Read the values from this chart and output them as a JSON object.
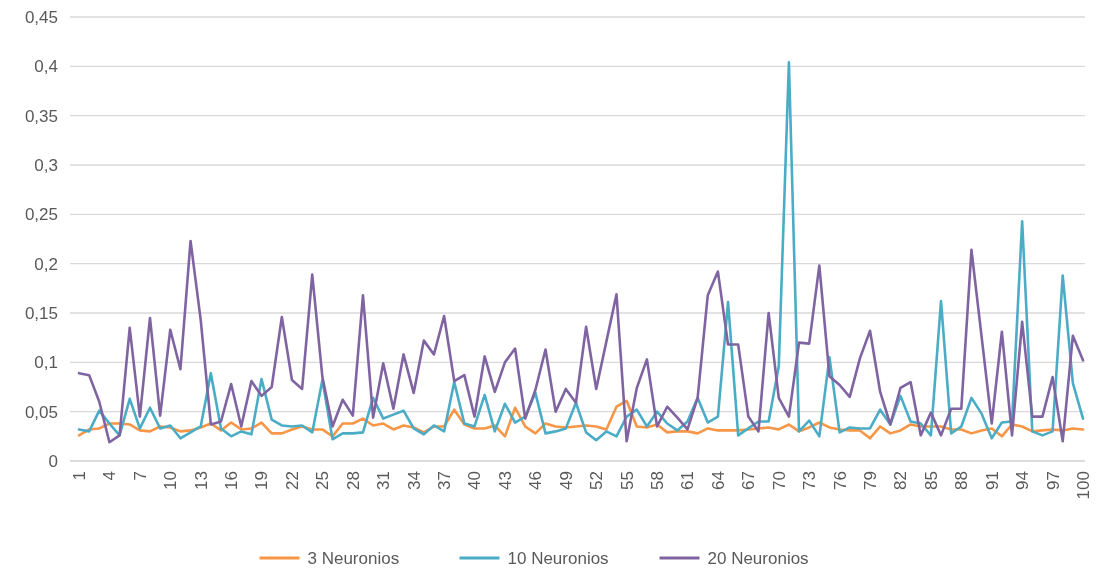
{
  "chart_data": {
    "type": "line",
    "categories": [
      "1",
      null,
      null,
      "4",
      null,
      null,
      "7",
      null,
      null,
      "10",
      null,
      null,
      "13",
      null,
      null,
      "16",
      null,
      null,
      "19",
      null,
      null,
      "22",
      null,
      null,
      "25",
      null,
      null,
      "28",
      null,
      null,
      "31",
      null,
      null,
      "34",
      null,
      null,
      "37",
      null,
      null,
      "40",
      null,
      null,
      "43",
      null,
      null,
      "46",
      null,
      null,
      "49",
      null,
      null,
      "52",
      null,
      null,
      "55",
      null,
      null,
      "58",
      null,
      null,
      "61",
      null,
      null,
      "64",
      null,
      null,
      "67",
      null,
      null,
      "70",
      null,
      null,
      "73",
      null,
      null,
      "76",
      null,
      null,
      "79",
      null,
      null,
      "82",
      null,
      null,
      "85",
      null,
      null,
      "88",
      null,
      null,
      "91",
      null,
      null,
      "94",
      null,
      null,
      "97",
      null,
      null,
      "100"
    ],
    "series": [
      {
        "name": "3 Neuronios",
        "color": "#f79646",
        "values": [
          0.026,
          0.032,
          0.033,
          0.038,
          0.038,
          0.037,
          0.031,
          0.03,
          0.035,
          0.034,
          0.03,
          0.031,
          0.034,
          0.038,
          0.031,
          0.039,
          0.032,
          0.033,
          0.039,
          0.028,
          0.028,
          0.032,
          0.035,
          0.032,
          0.032,
          0.025,
          0.038,
          0.038,
          0.043,
          0.036,
          0.038,
          0.032,
          0.036,
          0.034,
          0.029,
          0.035,
          0.035,
          0.052,
          0.037,
          0.033,
          0.033,
          0.036,
          0.025,
          0.054,
          0.035,
          0.028,
          0.038,
          0.035,
          0.034,
          0.035,
          0.036,
          0.035,
          0.032,
          0.055,
          0.061,
          0.035,
          0.034,
          0.037,
          0.029,
          0.03,
          0.03,
          0.028,
          0.033,
          0.031,
          0.031,
          0.031,
          0.032,
          0.033,
          0.034,
          0.032,
          0.037,
          0.03,
          0.034,
          0.039,
          0.034,
          0.032,
          0.031,
          0.031,
          0.023,
          0.035,
          0.028,
          0.031,
          0.037,
          0.035,
          0.035,
          0.035,
          0.032,
          0.032,
          0.028,
          0.031,
          0.033,
          0.025,
          0.037,
          0.035,
          0.03,
          0.031,
          0.032,
          0.031,
          0.033,
          0.032
        ]
      },
      {
        "name": "10 Neuronios",
        "color": "#4bacc6",
        "values": [
          0.032,
          0.03,
          0.051,
          0.038,
          0.026,
          0.063,
          0.033,
          0.054,
          0.033,
          0.036,
          0.023,
          0.029,
          0.035,
          0.089,
          0.033,
          0.025,
          0.03,
          0.027,
          0.083,
          0.042,
          0.036,
          0.035,
          0.036,
          0.029,
          0.082,
          0.022,
          0.028,
          0.028,
          0.029,
          0.064,
          0.043,
          0.047,
          0.051,
          0.033,
          0.027,
          0.036,
          0.03,
          0.08,
          0.038,
          0.035,
          0.067,
          0.03,
          0.058,
          0.039,
          0.045,
          0.069,
          0.028,
          0.03,
          0.033,
          0.059,
          0.029,
          0.021,
          0.03,
          0.025,
          0.045,
          0.052,
          0.035,
          0.05,
          0.038,
          0.031,
          0.04,
          0.064,
          0.039,
          0.045,
          0.161,
          0.026,
          0.033,
          0.04,
          0.04,
          0.096,
          0.404,
          0.03,
          0.041,
          0.025,
          0.105,
          0.029,
          0.034,
          0.033,
          0.033,
          0.052,
          0.037,
          0.066,
          0.04,
          0.038,
          0.026,
          0.162,
          0.028,
          0.035,
          0.064,
          0.048,
          0.023,
          0.039,
          0.04,
          0.243,
          0.03,
          0.026,
          0.03,
          0.188,
          0.079,
          0.043
        ]
      },
      {
        "name": "20 Neuronios",
        "color": "#8064a2",
        "values": [
          0.089,
          0.087,
          0.06,
          0.019,
          0.026,
          0.135,
          0.045,
          0.145,
          0.046,
          0.133,
          0.093,
          0.223,
          0.143,
          0.037,
          0.04,
          0.078,
          0.035,
          0.081,
          0.066,
          0.075,
          0.146,
          0.082,
          0.073,
          0.189,
          0.085,
          0.035,
          0.062,
          0.046,
          0.168,
          0.044,
          0.099,
          0.053,
          0.108,
          0.069,
          0.122,
          0.108,
          0.147,
          0.081,
          0.087,
          0.045,
          0.106,
          0.07,
          0.1,
          0.114,
          0.043,
          0.072,
          0.113,
          0.05,
          0.073,
          0.059,
          0.136,
          0.073,
          0.121,
          0.169,
          0.02,
          0.074,
          0.103,
          0.035,
          0.055,
          0.044,
          0.032,
          0.064,
          0.168,
          0.192,
          0.118,
          0.118,
          0.045,
          0.03,
          0.15,
          0.064,
          0.045,
          0.12,
          0.119,
          0.198,
          0.086,
          0.077,
          0.065,
          0.104,
          0.132,
          0.07,
          0.037,
          0.074,
          0.08,
          0.026,
          0.049,
          0.026,
          0.053,
          0.053,
          0.214,
          0.126,
          0.038,
          0.131,
          0.026,
          0.141,
          0.045,
          0.045,
          0.085,
          0.02,
          0.127,
          0.102
        ]
      }
    ],
    "ylim": [
      0,
      0.45
    ],
    "yticks": [
      {
        "value": 0,
        "label": "0"
      },
      {
        "value": 0.05,
        "label": "0,05"
      },
      {
        "value": 0.1,
        "label": "0,1"
      },
      {
        "value": 0.15,
        "label": "0,15"
      },
      {
        "value": 0.2,
        "label": "0,2"
      },
      {
        "value": 0.25,
        "label": "0,25"
      },
      {
        "value": 0.3,
        "label": "0,3"
      },
      {
        "value": 0.35,
        "label": "0,35"
      },
      {
        "value": 0.4,
        "label": "0,4"
      },
      {
        "value": 0.45,
        "label": "0,45"
      }
    ],
    "grid": "y",
    "legend": "bottom",
    "marker": "none",
    "line_style": "solid"
  }
}
